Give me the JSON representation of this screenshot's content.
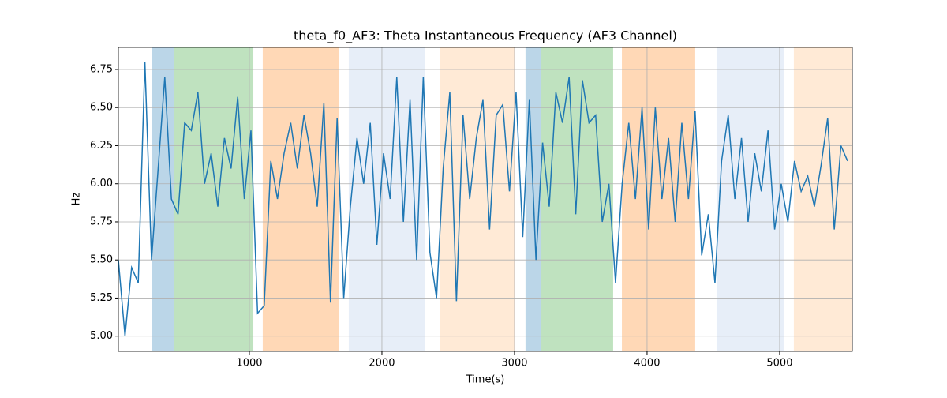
{
  "chart_data": {
    "type": "line",
    "title": "theta_f0_AF3: Theta Instantaneous Frequency (AF3 Channel)",
    "xlabel": "Time(s)",
    "ylabel": "Hz",
    "x": [
      12,
      62,
      112,
      162,
      212,
      262,
      312,
      362,
      412,
      462,
      512,
      562,
      612,
      662,
      712,
      762,
      812,
      862,
      912,
      962,
      1012,
      1062,
      1112,
      1162,
      1212,
      1262,
      1312,
      1362,
      1412,
      1462,
      1512,
      1562,
      1612,
      1662,
      1712,
      1762,
      1812,
      1862,
      1912,
      1962,
      2012,
      2062,
      2112,
      2162,
      2212,
      2262,
      2312,
      2362,
      2412,
      2462,
      2512,
      2562,
      2612,
      2662,
      2712,
      2762,
      2812,
      2862,
      2912,
      2962,
      3012,
      3062,
      3112,
      3162,
      3212,
      3262,
      3312,
      3362,
      3412,
      3462,
      3512,
      3562,
      3612,
      3662,
      3712,
      3762,
      3812,
      3862,
      3912,
      3962,
      4012,
      4062,
      4112,
      4162,
      4212,
      4262,
      4312,
      4362,
      4412,
      4462,
      4512,
      4562,
      4612,
      4662,
      4712,
      4762,
      4812,
      4862,
      4912,
      4962,
      5012,
      5062,
      5112,
      5162,
      5212,
      5262,
      5312,
      5362,
      5412,
      5462,
      5512
    ],
    "series": [
      {
        "color": "#1f77b4",
        "values": [
          5.5,
          5.0,
          5.45,
          5.35,
          6.8,
          5.5,
          6.1,
          6.7,
          5.9,
          5.8,
          6.4,
          6.35,
          6.6,
          6.0,
          6.2,
          5.85,
          6.3,
          6.1,
          6.57,
          5.9,
          6.35,
          5.15,
          5.2,
          6.15,
          5.9,
          6.2,
          6.4,
          6.1,
          6.45,
          6.2,
          5.85,
          6.53,
          5.22,
          6.43,
          5.25,
          5.85,
          6.3,
          6.0,
          6.4,
          5.6,
          6.2,
          5.9,
          6.7,
          5.75,
          6.55,
          5.5,
          6.7,
          5.55,
          5.25,
          6.1,
          6.6,
          5.23,
          6.45,
          5.9,
          6.3,
          6.55,
          5.7,
          6.45,
          6.52,
          5.95,
          6.6,
          5.65,
          6.55,
          5.5,
          6.27,
          5.85,
          6.6,
          6.4,
          6.7,
          5.8,
          6.68,
          6.4,
          6.45,
          5.75,
          6.0,
          5.35,
          6.0,
          6.4,
          5.9,
          6.5,
          5.7,
          6.5,
          5.9,
          6.3,
          5.75,
          6.4,
          5.9,
          6.48,
          5.53,
          5.8,
          5.35,
          6.15,
          6.45,
          5.9,
          6.3,
          5.75,
          6.2,
          5.95,
          6.35,
          5.7,
          6.0,
          5.75,
          6.15,
          5.95,
          6.05,
          5.85,
          6.12,
          6.43,
          5.7,
          6.25,
          6.15
        ]
      }
    ],
    "spans": [
      {
        "start": 262,
        "end": 429,
        "color": "#1f77b4"
      },
      {
        "start": 429,
        "end": 1030,
        "color": "#2ca02c"
      },
      {
        "start": 1101,
        "end": 1673,
        "color": "#ff7f0e"
      },
      {
        "start": 1750,
        "end": 2327,
        "color": "#aec7e8"
      },
      {
        "start": 2435,
        "end": 3006,
        "color": "#ffbb78"
      },
      {
        "start": 3083,
        "end": 3202,
        "color": "#1f77b4"
      },
      {
        "start": 3202,
        "end": 3744,
        "color": "#2ca02c"
      },
      {
        "start": 3810,
        "end": 4363,
        "color": "#ff7f0e"
      },
      {
        "start": 4524,
        "end": 5030,
        "color": "#aec7e8"
      },
      {
        "start": 5107,
        "end": 5548,
        "color": "#ffbb78"
      }
    ],
    "xlim": [
      12,
      5548
    ],
    "ylim": [
      4.9,
      6.895
    ],
    "xticks": [
      1000,
      2000,
      3000,
      4000,
      5000
    ],
    "yticks": [
      {
        "value": 5,
        "label": "5.00"
      },
      {
        "value": 5.25,
        "label": "5.25"
      },
      {
        "value": 5.5,
        "label": "5.50"
      },
      {
        "value": 5.75,
        "label": "5.75"
      },
      {
        "value": 6,
        "label": "6.00"
      },
      {
        "value": 6.25,
        "label": "6.25"
      },
      {
        "value": 6.5,
        "label": "6.50"
      },
      {
        "value": 6.75,
        "label": "6.75"
      }
    ],
    "grid": true
  }
}
